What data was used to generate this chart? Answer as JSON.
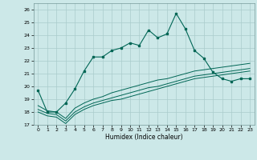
{
  "xlabel": "Humidex (Indice chaleur)",
  "bg_color": "#cce8e8",
  "grid_color": "#aacccc",
  "line_color": "#006655",
  "xlim": [
    -0.5,
    23.5
  ],
  "ylim": [
    17,
    26.5
  ],
  "yticks": [
    17,
    18,
    19,
    20,
    21,
    22,
    23,
    24,
    25,
    26
  ],
  "xticks": [
    0,
    1,
    2,
    3,
    4,
    5,
    6,
    7,
    8,
    9,
    10,
    11,
    12,
    13,
    14,
    15,
    16,
    17,
    18,
    19,
    20,
    21,
    22,
    23
  ],
  "main_line": [
    19.7,
    18.0,
    18.0,
    18.7,
    19.8,
    21.2,
    22.3,
    22.3,
    22.8,
    23.0,
    23.4,
    23.2,
    24.4,
    23.8,
    24.1,
    25.7,
    24.5,
    22.8,
    22.2,
    21.1,
    20.6,
    20.4,
    20.6,
    20.6
  ],
  "line2": [
    18.5,
    18.1,
    18.0,
    17.5,
    18.3,
    18.7,
    19.0,
    19.2,
    19.5,
    19.7,
    19.9,
    20.1,
    20.3,
    20.5,
    20.6,
    20.8,
    21.0,
    21.2,
    21.3,
    21.4,
    21.5,
    21.6,
    21.7,
    21.8
  ],
  "line3": [
    18.2,
    17.9,
    17.8,
    17.3,
    18.0,
    18.4,
    18.7,
    18.9,
    19.1,
    19.3,
    19.5,
    19.7,
    19.9,
    20.0,
    20.2,
    20.4,
    20.6,
    20.8,
    20.9,
    21.0,
    21.1,
    21.2,
    21.3,
    21.4
  ],
  "line4": [
    18.0,
    17.7,
    17.6,
    17.1,
    17.8,
    18.2,
    18.5,
    18.7,
    18.9,
    19.0,
    19.2,
    19.4,
    19.6,
    19.8,
    20.0,
    20.2,
    20.4,
    20.6,
    20.7,
    20.8,
    20.9,
    21.0,
    21.1,
    21.2
  ]
}
